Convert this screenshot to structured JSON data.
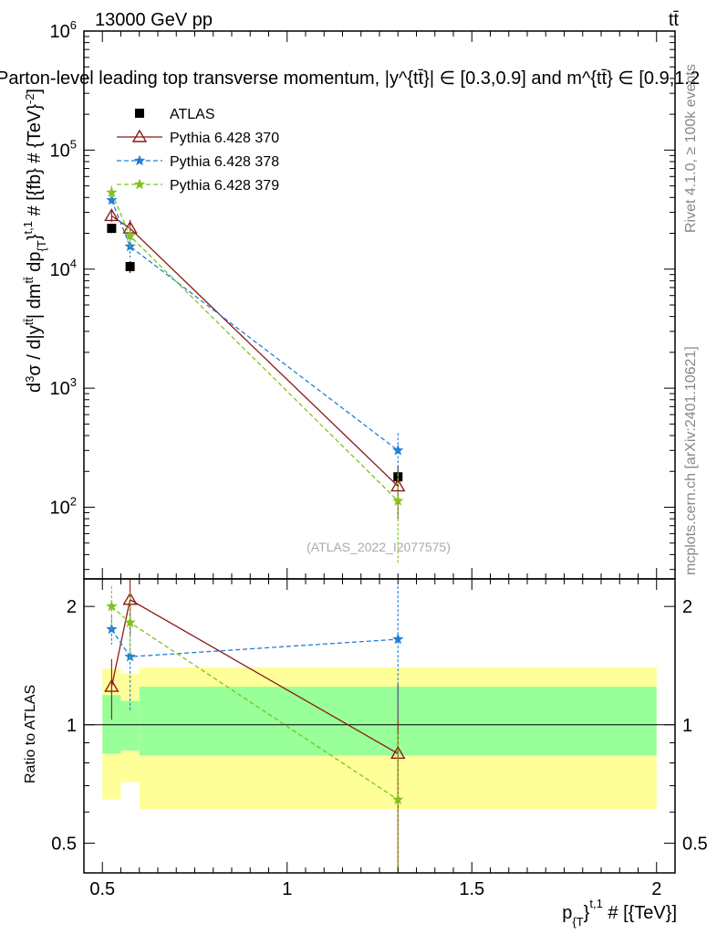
{
  "header": {
    "energy_label": "13000 GeV pp",
    "process_label": "tt̄",
    "plot_title": "Parton-level leading top transverse momentum, |y^{tt̄}| ∈ [0.3,0.9] and m^{tt̄} ∈ [0.9,1.2"
  },
  "side_labels": {
    "rivet": "Rivet 4.1.0, ≥ 100k events",
    "mcplots": "mcplots.cern.ch [arXiv:2401.10621]"
  },
  "watermark": "(ATLAS_2022_I2077575)",
  "colors": {
    "atlas": "#000000",
    "py370": "#8b1a1a",
    "py378": "#1f7fd8",
    "py379": "#7fc31c",
    "band_inner": "#99ff99",
    "band_outer": "#ffff99"
  },
  "chart_data": [
    {
      "type": "scatter",
      "title": "Parton-level leading top transverse momentum, |y^{tt̄}| ∈ [0.3,0.9] and m^{tt̄} ∈ [0.9,1.2",
      "ylabel": "d³σ / d|y^{tt̄}| dm^{tt̄} dp_{T}^{t,1} # [{fb} # {TeV}^{-2}]",
      "yscale": "log",
      "ylim": [
        25,
        1000000
      ],
      "xlim": [
        0.45,
        2.05
      ],
      "y_ticks": [
        "10^2",
        "10^3",
        "10^4",
        "10^5",
        "10^6"
      ],
      "legend_position": "top-left",
      "series": [
        {
          "name": "ATLAS",
          "marker": "square",
          "x": [
            0.525,
            0.575,
            1.3
          ],
          "y": [
            22000,
            10500,
            180
          ],
          "yerr_lo": [
            2000,
            1200,
            45
          ],
          "yerr_hi": [
            2000,
            1200,
            45
          ]
        },
        {
          "name": "Pythia 6.428 370",
          "marker": "triangle",
          "x": [
            0.525,
            0.575,
            1.3
          ],
          "y": [
            28000,
            22000,
            150
          ],
          "yerr_lo": [
            3000,
            4000,
            70
          ],
          "yerr_hi": [
            3000,
            4000,
            70
          ]
        },
        {
          "name": "Pythia 6.428 378",
          "marker": "star",
          "x": [
            0.525,
            0.575,
            1.3
          ],
          "y": [
            38000,
            15500,
            300
          ],
          "yerr_lo": [
            3000,
            3000,
            120
          ],
          "yerr_hi": [
            3000,
            3000,
            120
          ]
        },
        {
          "name": "Pythia 6.428 379",
          "marker": "star",
          "x": [
            0.525,
            0.575,
            1.3
          ],
          "y": [
            44000,
            19000,
            113
          ],
          "yerr_lo": [
            6000,
            4000,
            80
          ],
          "yerr_hi": [
            6000,
            4000,
            80
          ]
        }
      ]
    },
    {
      "type": "scatter",
      "xlabel": "p_{T}^{t,1} # [{TeV}]",
      "ylabel": "Ratio to ATLAS",
      "ylim": [
        0.42,
        2.35
      ],
      "xlim": [
        0.45,
        2.05
      ],
      "x_ticks": [
        "0.5",
        "1",
        "1.5",
        "2"
      ],
      "y_ticks": [
        "0.5",
        "1",
        "2"
      ],
      "bands": [
        {
          "x_from": 0.5,
          "x_to": 0.55,
          "inner": [
            0.845,
            1.19
          ],
          "outer": [
            0.645,
            1.39
          ]
        },
        {
          "x_from": 0.55,
          "x_to": 0.6,
          "inner": [
            0.86,
            1.15
          ],
          "outer": [
            0.715,
            1.35
          ]
        },
        {
          "x_from": 0.6,
          "x_to": 2.0,
          "inner": [
            0.835,
            1.25
          ],
          "outer": [
            0.61,
            1.4
          ]
        }
      ],
      "series": [
        {
          "name": "Pythia 6.428 370",
          "x": [
            0.525,
            0.575,
            1.3
          ],
          "y": [
            1.25,
            2.08,
            0.845
          ],
          "yerr_lo": [
            0.22,
            0.4,
            0.42
          ],
          "yerr_hi": [
            0.22,
            0.4,
            0.42
          ]
        },
        {
          "name": "Pythia 6.428 378",
          "x": [
            0.525,
            0.575,
            1.3
          ],
          "y": [
            1.75,
            1.49,
            1.65
          ],
          "yerr_lo": [
            0.15,
            0.4,
            0.6
          ],
          "yerr_hi": [
            0.15,
            0.4,
            0.6
          ]
        },
        {
          "name": "Pythia 6.428 379",
          "x": [
            0.525,
            0.575,
            1.3
          ],
          "y": [
            2.0,
            1.82,
            0.645
          ],
          "yerr_lo": [
            0.25,
            0.35,
            0.3
          ],
          "yerr_hi": [
            0.25,
            0.35,
            0.3
          ]
        }
      ]
    }
  ]
}
